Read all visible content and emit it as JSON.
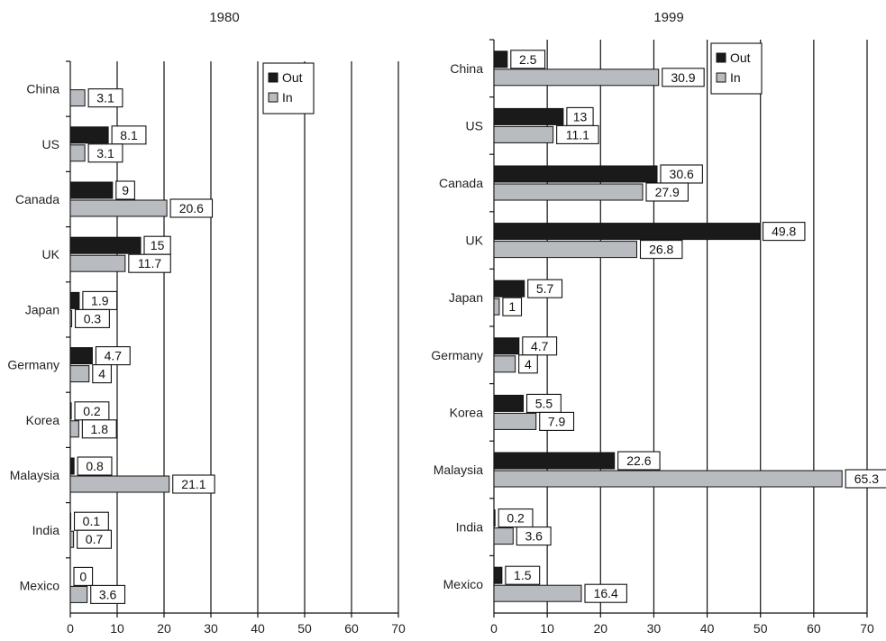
{
  "chart_data": [
    {
      "type": "bar",
      "orientation": "horizontal",
      "title": "1980",
      "categories": [
        "China",
        "US",
        "Canada",
        "UK",
        "Japan",
        "Germany",
        "Korea",
        "Malaysia",
        "India",
        "Mexico"
      ],
      "series": [
        {
          "name": "Out",
          "color": "#1a1a1a",
          "values": [
            null,
            8.1,
            9,
            15,
            1.9,
            4.7,
            0.2,
            0.8,
            0.1,
            0
          ]
        },
        {
          "name": "In",
          "color": "#b8bcc0",
          "values": [
            3.1,
            3.1,
            20.6,
            11.7,
            0.3,
            4,
            1.8,
            21.1,
            0.7,
            3.6
          ]
        }
      ],
      "xlim": [
        0,
        70
      ],
      "xticks": [
        0,
        10,
        20,
        30,
        40,
        50,
        60,
        70
      ],
      "grid": true,
      "legend": "top-right"
    },
    {
      "type": "bar",
      "orientation": "horizontal",
      "title": "1999",
      "categories": [
        "China",
        "US",
        "Canada",
        "UK",
        "Japan",
        "Germany",
        "Korea",
        "Malaysia",
        "India",
        "Mexico"
      ],
      "series": [
        {
          "name": "Out",
          "color": "#1a1a1a",
          "values": [
            2.5,
            13,
            30.6,
            49.8,
            5.7,
            4.7,
            5.5,
            22.6,
            0.2,
            1.5
          ]
        },
        {
          "name": "In",
          "color": "#b8bcc0",
          "values": [
            30.9,
            11.1,
            27.9,
            26.8,
            1,
            4,
            7.9,
            65.3,
            3.6,
            16.4
          ]
        }
      ],
      "xlim": [
        0,
        70
      ],
      "xticks": [
        0,
        10,
        20,
        30,
        40,
        50,
        60,
        70
      ],
      "grid": true,
      "legend": "top-right"
    }
  ]
}
